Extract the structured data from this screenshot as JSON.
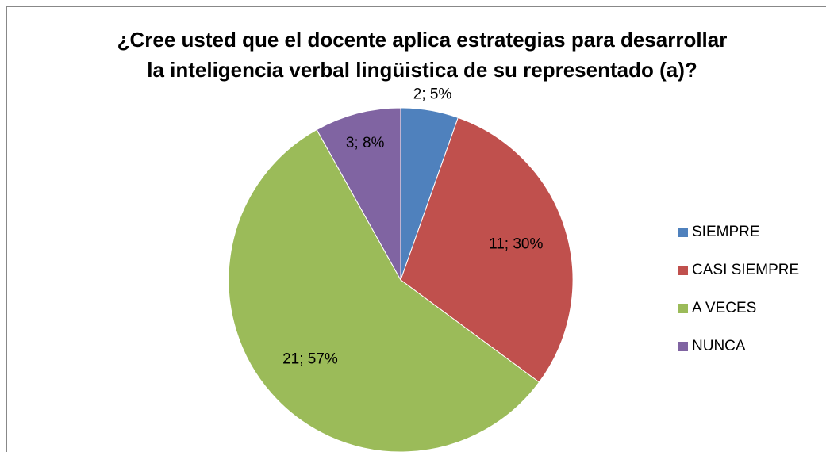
{
  "chart_data": {
    "type": "pie",
    "title": [
      "¿Cree usted que el docente aplica estrategias para desarrollar",
      "la inteligencia verbal lingüistica de su representado (a)?"
    ],
    "categories": [
      "SIEMPRE",
      "CASI SIEMPRE",
      "A VECES",
      "NUNCA"
    ],
    "values": [
      2,
      11,
      21,
      3
    ],
    "value_labels": [
      "2; 5%",
      "11; 30%",
      "21; 57%",
      "3; 8%"
    ],
    "colors": [
      "#4f81bd",
      "#c0504d",
      "#9bbb59",
      "#8064a2"
    ],
    "legend": "right"
  }
}
